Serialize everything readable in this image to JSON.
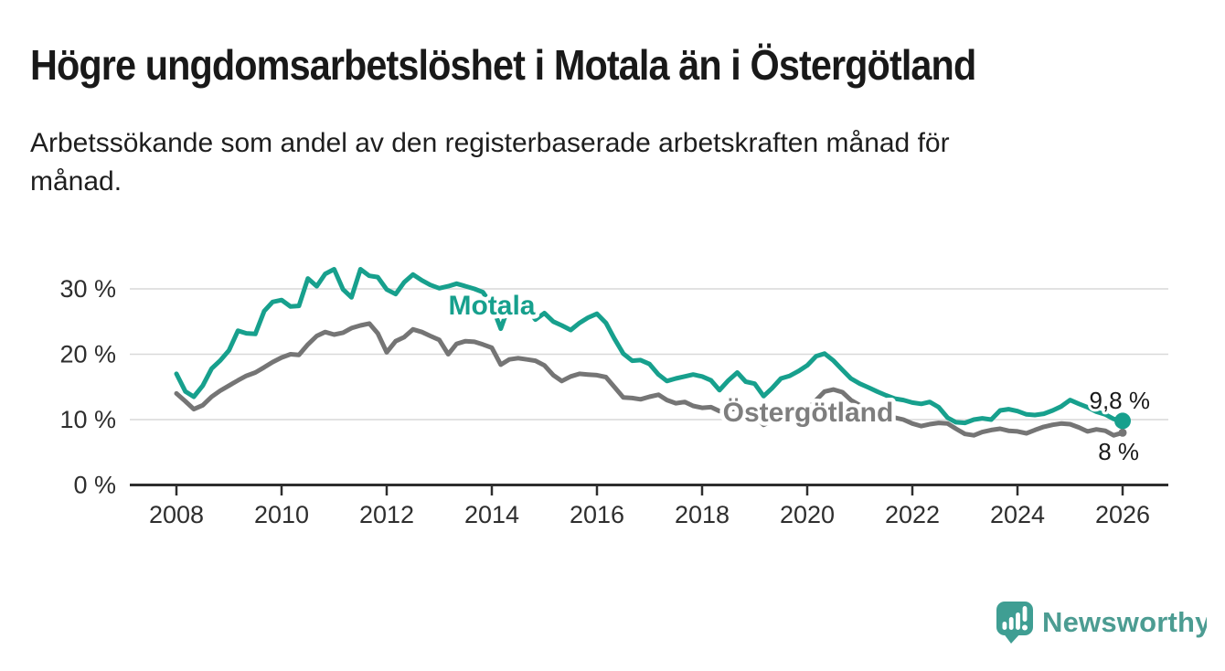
{
  "header": {
    "title": "Högre ungdomsarbetslöshet i Motala än i Östergötland",
    "subtitle": "Arbetssökande som andel av den registerbaserade arbetskraften månad för\nmånad."
  },
  "chart_data": {
    "type": "line",
    "title": "Högre ungdomsarbetslöshet i Motala än i Östergötland",
    "subtitle": "Arbetssökande som andel av den registerbaserade arbetskraften månad för månad.",
    "unit": "%",
    "grid": "horizontal",
    "legend_position": "inline-labels",
    "xlim": [
      2007.1,
      2026.9
    ],
    "ylim": [
      0,
      34
    ],
    "x_ticks": [
      2008,
      2010,
      2012,
      2014,
      2016,
      2018,
      2020,
      2022,
      2024,
      2026
    ],
    "y_tick_values": [
      0,
      10,
      20,
      30
    ],
    "y_ticks": [
      "0 %",
      "10 %",
      "20 %",
      "30 %"
    ],
    "x": [
      2008,
      2008.17,
      2008.33,
      2008.5,
      2008.67,
      2008.83,
      2009,
      2009.17,
      2009.33,
      2009.5,
      2009.67,
      2009.83,
      2010,
      2010.17,
      2010.33,
      2010.5,
      2010.67,
      2010.83,
      2011,
      2011.17,
      2011.33,
      2011.5,
      2011.67,
      2011.83,
      2012,
      2012.17,
      2012.33,
      2012.5,
      2012.67,
      2012.83,
      2013,
      2013.17,
      2013.33,
      2013.5,
      2013.67,
      2013.83,
      2014,
      2014.17,
      2014.33,
      2014.5,
      2014.67,
      2014.83,
      2015,
      2015.17,
      2015.33,
      2015.5,
      2015.67,
      2015.83,
      2016,
      2016.17,
      2016.33,
      2016.5,
      2016.67,
      2016.83,
      2017,
      2017.17,
      2017.33,
      2017.5,
      2017.67,
      2017.83,
      2018,
      2018.17,
      2018.33,
      2018.5,
      2018.67,
      2018.83,
      2019,
      2019.17,
      2019.33,
      2019.5,
      2019.67,
      2019.83,
      2020,
      2020.17,
      2020.33,
      2020.5,
      2020.67,
      2020.83,
      2021,
      2021.17,
      2021.33,
      2021.5,
      2021.67,
      2021.83,
      2022,
      2022.17,
      2022.33,
      2022.5,
      2022.67,
      2022.83,
      2023,
      2023.17,
      2023.33,
      2023.5,
      2023.67,
      2023.83,
      2024,
      2024.17,
      2024.33,
      2024.5,
      2024.67,
      2024.83,
      2025,
      2025.17,
      2025.33,
      2025.5,
      2025.67,
      2025.83,
      2026
    ],
    "series": [
      {
        "name": "Motala",
        "color": "#17a08d",
        "end_value_label": "9,8 %",
        "values": [
          17.0,
          14.3,
          13.5,
          15.2,
          17.8,
          19.0,
          20.6,
          23.6,
          23.2,
          23.1,
          26.6,
          28.0,
          28.3,
          27.3,
          27.4,
          31.6,
          30.4,
          32.3,
          33.0,
          29.9,
          28.7,
          33.0,
          32.0,
          31.8,
          29.9,
          29.2,
          31.0,
          32.2,
          31.3,
          30.6,
          30.1,
          30.4,
          30.8,
          30.4,
          30.0,
          29.5,
          27.5,
          23.9,
          27.6,
          28.0,
          27.0,
          25.3,
          26.3,
          25.0,
          24.4,
          23.7,
          24.8,
          25.6,
          26.2,
          24.8,
          22.4,
          20.1,
          19.0,
          19.1,
          18.5,
          16.9,
          15.9,
          16.3,
          16.6,
          16.9,
          16.6,
          16.0,
          14.5,
          16.0,
          17.2,
          15.8,
          15.5,
          13.6,
          14.8,
          16.3,
          16.7,
          17.4,
          18.3,
          19.7,
          20.1,
          19.0,
          17.6,
          16.3,
          15.5,
          14.9,
          14.3,
          13.7,
          13.2,
          13.0,
          12.6,
          12.4,
          12.7,
          11.9,
          10.3,
          9.6,
          9.5,
          10.0,
          10.2,
          10.0,
          11.4,
          11.6,
          11.3,
          10.8,
          10.7,
          10.9,
          11.4,
          12.0,
          13.0,
          12.4,
          11.9,
          11.2,
          10.8,
          10.1,
          9.8
        ]
      },
      {
        "name": "Östergötland",
        "color": "#757575",
        "end_value_label": "8 %",
        "values": [
          14.0,
          12.8,
          11.6,
          12.2,
          13.5,
          14.4,
          15.2,
          16.0,
          16.7,
          17.2,
          18.0,
          18.8,
          19.5,
          20.0,
          19.9,
          21.5,
          22.8,
          23.4,
          23.0,
          23.3,
          24.0,
          24.4,
          24.7,
          23.2,
          20.3,
          22.0,
          22.6,
          23.8,
          23.4,
          22.8,
          22.2,
          20.0,
          21.6,
          22.0,
          21.9,
          21.5,
          21.0,
          18.4,
          19.2,
          19.4,
          19.2,
          19.0,
          18.3,
          16.8,
          15.9,
          16.6,
          17.0,
          16.9,
          16.8,
          16.5,
          15.0,
          13.4,
          13.3,
          13.1,
          13.5,
          13.8,
          13.0,
          12.5,
          12.7,
          12.1,
          11.8,
          11.9,
          11.3,
          11.5,
          11.7,
          11.3,
          10.6,
          9.2,
          9.8,
          10.5,
          10.8,
          11.0,
          11.5,
          13.0,
          14.3,
          14.6,
          14.2,
          13.0,
          12.2,
          11.5,
          10.9,
          10.4,
          10.3,
          10.0,
          9.4,
          9.0,
          9.3,
          9.5,
          9.4,
          8.6,
          7.8,
          7.6,
          8.1,
          8.4,
          8.6,
          8.3,
          8.2,
          7.9,
          8.4,
          8.9,
          9.2,
          9.4,
          9.3,
          8.8,
          8.2,
          8.5,
          8.3,
          7.6,
          8.0
        ]
      }
    ],
    "annotations": {
      "motala_label": "Motala",
      "ostergotland_label": "Östergötland",
      "motala_end_value": "9,8 %",
      "ostergotland_end_value": "8 %"
    }
  },
  "branding": {
    "name": "Newsworthy"
  },
  "colors": {
    "teal": "#17a08d",
    "line_gray": "#757575",
    "label_gray": "#7e7e7e",
    "grid": "#d9d9d9",
    "axis": "#2e2e2e",
    "tick_text": "#2e2e2e",
    "logo_teal": "#3f9e93",
    "logo_text_teal": "#4c9c92",
    "background": "#ffffff"
  }
}
